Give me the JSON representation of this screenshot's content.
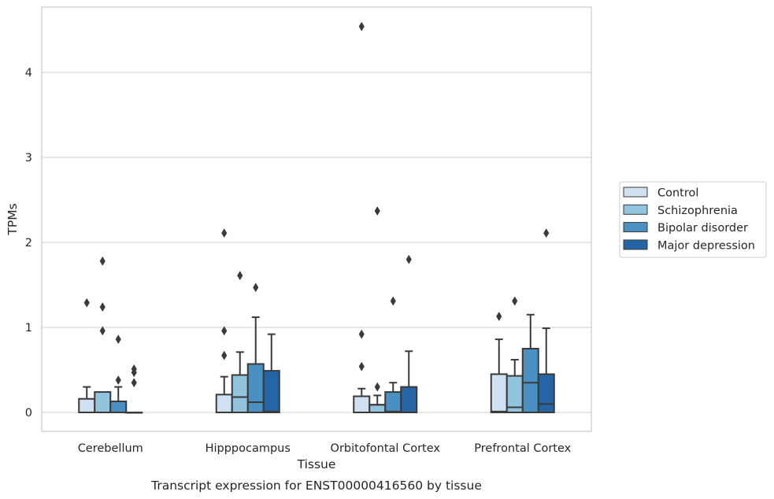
{
  "chart_data": {
    "type": "box",
    "title": "",
    "caption": "Transcript expression for ENST00000416560 by tissue",
    "xlabel": "Tissue",
    "ylabel": "TPMs",
    "ylim": [
      -0.22,
      4.8
    ],
    "yticks": [
      0,
      1,
      2,
      3,
      4
    ],
    "grid": "horizontal",
    "legend_position": "right",
    "categories": [
      "Cerebellum",
      "Hipppocampus",
      "Orbitofontal Cortex",
      "Prefrontal Cortex"
    ],
    "series": [
      {
        "name": "Control",
        "color": "#cfe0f1",
        "boxes": [
          {
            "whislo": 0,
            "q1": 0,
            "med": 0,
            "q3": 0.16,
            "whishi": 0.3,
            "fliers": [
              1.29
            ]
          },
          {
            "whislo": 0,
            "q1": 0,
            "med": 0,
            "q3": 0.21,
            "whishi": 0.42,
            "fliers": [
              0.67,
              0.96,
              2.11
            ]
          },
          {
            "whislo": 0,
            "q1": 0,
            "med": 0,
            "q3": 0.19,
            "whishi": 0.28,
            "fliers": [
              0.54,
              0.92,
              4.54
            ]
          },
          {
            "whislo": 0,
            "q1": 0,
            "med": 0.01,
            "q3": 0.45,
            "whishi": 0.86,
            "fliers": [
              1.13
            ]
          }
        ]
      },
      {
        "name": "Schizophrenia",
        "color": "#93c4de",
        "boxes": [
          {
            "whislo": 0,
            "q1": 0,
            "med": 0,
            "q3": 0.24,
            "whishi": 0.24,
            "fliers": [
              0.96,
              1.24,
              1.78
            ]
          },
          {
            "whislo": 0,
            "q1": 0,
            "med": 0.18,
            "q3": 0.44,
            "whishi": 0.71,
            "fliers": [
              1.61
            ]
          },
          {
            "whislo": 0,
            "q1": 0,
            "med": 0.09,
            "q3": 0.09,
            "whishi": 0.2,
            "fliers": [
              0.3,
              2.37
            ]
          },
          {
            "whislo": 0,
            "q1": 0,
            "med": 0.06,
            "q3": 0.43,
            "whishi": 0.62,
            "fliers": [
              1.31
            ]
          }
        ]
      },
      {
        "name": "Bipolar disorder",
        "color": "#4a90c2",
        "boxes": [
          {
            "whislo": 0,
            "q1": 0,
            "med": 0,
            "q3": 0.13,
            "whishi": 0.3,
            "fliers": [
              0.38,
              0.86
            ]
          },
          {
            "whislo": 0,
            "q1": 0,
            "med": 0.12,
            "q3": 0.57,
            "whishi": 1.12,
            "fliers": [
              1.47
            ]
          },
          {
            "whislo": 0,
            "q1": 0,
            "med": 0.01,
            "q3": 0.24,
            "whishi": 0.35,
            "fliers": [
              1.31
            ]
          },
          {
            "whislo": 0,
            "q1": 0,
            "med": 0.35,
            "q3": 0.75,
            "whishi": 1.15,
            "fliers": []
          }
        ]
      },
      {
        "name": "Major depression",
        "color": "#2565a6",
        "boxes": [
          {
            "whislo": 0,
            "q1": 0,
            "med": 0,
            "q3": 0,
            "whishi": 0,
            "fliers": [
              0.35,
              0.47,
              0.51
            ]
          },
          {
            "whislo": 0,
            "q1": 0,
            "med": 0.01,
            "q3": 0.49,
            "whishi": 0.92,
            "fliers": []
          },
          {
            "whislo": 0,
            "q1": 0,
            "med": 0,
            "q3": 0.3,
            "whishi": 0.72,
            "fliers": [
              1.8
            ]
          },
          {
            "whislo": 0,
            "q1": 0,
            "med": 0.1,
            "q3": 0.45,
            "whishi": 0.99,
            "fliers": [
              2.11
            ]
          }
        ]
      }
    ]
  }
}
